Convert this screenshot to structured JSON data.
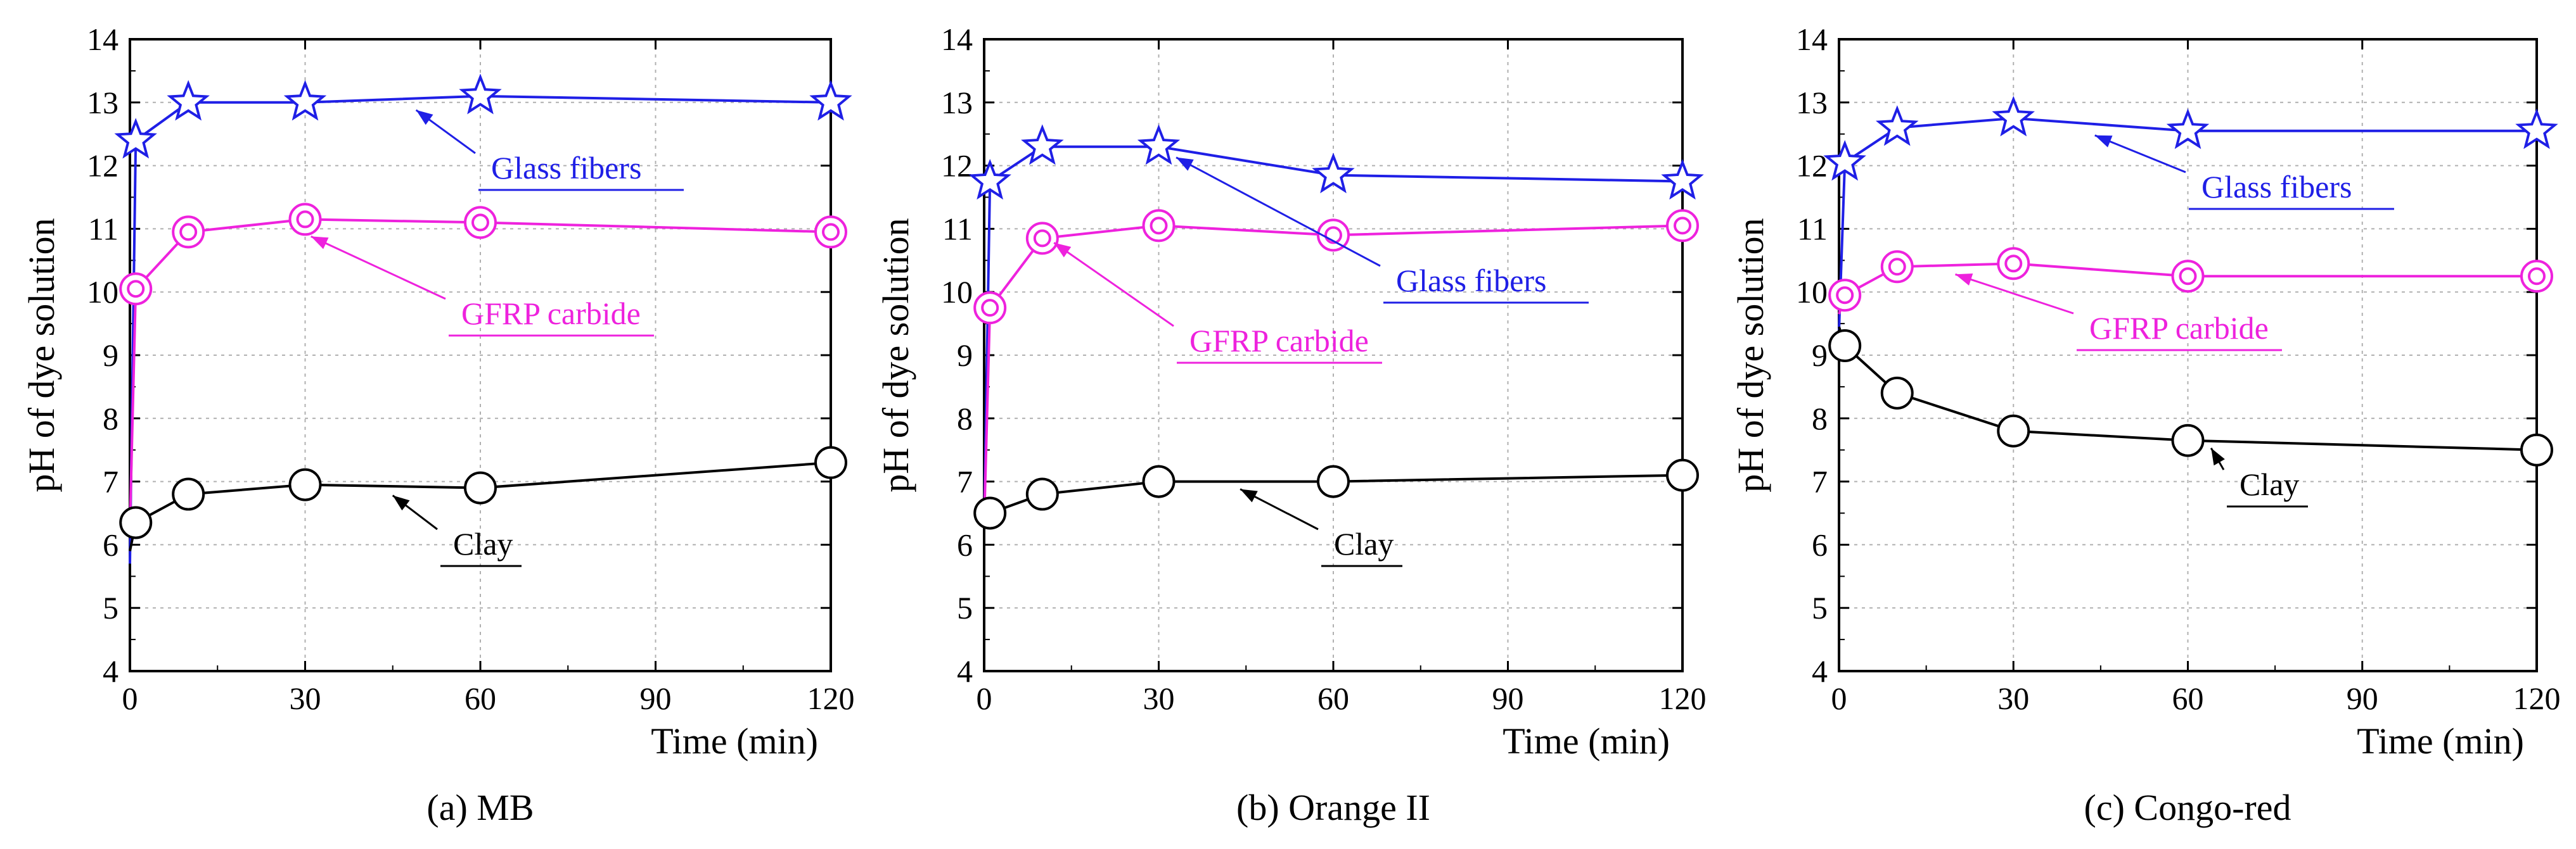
{
  "colors": {
    "glass": "#1f1fe6",
    "gfrp": "#ee22dd",
    "clay": "#000000",
    "grid": "#b0b0b0"
  },
  "chart_data": [
    {
      "type": "line",
      "caption": "(a) MB",
      "xlabel": "Time (min)",
      "ylabel": "pH of dye solution",
      "xlim": [
        0,
        120
      ],
      "ylim": [
        4,
        14
      ],
      "xticks": [
        0,
        30,
        60,
        90,
        120
      ],
      "yticks": [
        4,
        5,
        6,
        7,
        8,
        9,
        10,
        11,
        12,
        13,
        14
      ],
      "grid": true,
      "series": [
        {
          "name": "Glass fibers",
          "marker": "star",
          "x": [
            0,
            1,
            10,
            30,
            60,
            120
          ],
          "y": [
            5.7,
            12.4,
            13.0,
            13.0,
            13.1,
            13.0
          ]
        },
        {
          "name": "GFRP carbide",
          "marker": "double-circle",
          "x": [
            0,
            1,
            10,
            30,
            60,
            120
          ],
          "y": [
            6.3,
            10.05,
            10.95,
            11.15,
            11.1,
            10.95
          ]
        },
        {
          "name": "Clay",
          "marker": "circle",
          "x": [
            0,
            1,
            10,
            30,
            60,
            120
          ],
          "y": [
            5.9,
            6.35,
            6.8,
            6.95,
            6.9,
            7.3
          ]
        }
      ],
      "annotations": [
        {
          "text": "Glass fibers",
          "series": "Glass fibers",
          "x": 49,
          "y": 13.0
        },
        {
          "text": "GFRP carbide",
          "series": "GFRP carbide",
          "x": 31,
          "y": 11.0
        },
        {
          "text": "Clay",
          "series": "Clay",
          "x": 45,
          "y": 6.9
        }
      ]
    },
    {
      "type": "line",
      "caption": "(b) Orange II",
      "xlabel": "Time (min)",
      "ylabel": "pH of dye solution",
      "xlim": [
        0,
        120
      ],
      "ylim": [
        4,
        14
      ],
      "xticks": [
        0,
        30,
        60,
        90,
        120
      ],
      "yticks": [
        4,
        5,
        6,
        7,
        8,
        9,
        10,
        11,
        12,
        13,
        14
      ],
      "grid": true,
      "series": [
        {
          "name": "Glass fibers",
          "marker": "star",
          "x": [
            0,
            1,
            10,
            30,
            60,
            120
          ],
          "y": [
            6.3,
            11.75,
            12.3,
            12.3,
            11.85,
            11.75
          ]
        },
        {
          "name": "GFRP carbide",
          "marker": "double-circle",
          "x": [
            0,
            1,
            10,
            30,
            60,
            120
          ],
          "y": [
            6.35,
            9.75,
            10.85,
            11.05,
            10.9,
            11.05
          ]
        },
        {
          "name": "Clay",
          "marker": "circle",
          "x": [
            0,
            1,
            10,
            30,
            60,
            120
          ],
          "y": [
            6.45,
            6.5,
            6.8,
            7.0,
            7.0,
            7.1
          ]
        }
      ],
      "annotations": [
        {
          "text": "Glass fibers",
          "series": "Glass fibers",
          "x": 33,
          "y": 12.25
        },
        {
          "text": "GFRP carbide",
          "series": "GFRP carbide",
          "x": 12,
          "y": 10.9
        },
        {
          "text": "Clay",
          "series": "Clay",
          "x": 44,
          "y": 7.0
        }
      ]
    },
    {
      "type": "line",
      "caption": "(c) Congo-red",
      "xlabel": "Time (min)",
      "ylabel": "pH of dye solution",
      "xlim": [
        0,
        120
      ],
      "ylim": [
        4,
        14
      ],
      "xticks": [
        0,
        30,
        60,
        90,
        120
      ],
      "yticks": [
        4,
        5,
        6,
        7,
        8,
        9,
        10,
        11,
        12,
        13,
        14
      ],
      "grid": true,
      "series": [
        {
          "name": "Glass fibers",
          "marker": "star",
          "x": [
            0,
            1,
            10,
            30,
            60,
            120
          ],
          "y": [
            9.4,
            12.05,
            12.6,
            12.75,
            12.55,
            12.55
          ]
        },
        {
          "name": "GFRP carbide",
          "marker": "double-circle",
          "x": [
            0,
            1,
            10,
            30,
            60,
            120
          ],
          "y": [
            9.65,
            9.95,
            10.4,
            10.45,
            10.25,
            10.25
          ]
        },
        {
          "name": "Clay",
          "marker": "circle",
          "x": [
            0,
            1,
            10,
            30,
            60,
            120
          ],
          "y": [
            9.45,
            9.15,
            8.4,
            7.8,
            7.65,
            7.5
          ]
        }
      ],
      "annotations": [
        {
          "text": "Glass fibers",
          "series": "Glass fibers",
          "x": 44,
          "y": 12.6
        },
        {
          "text": "GFRP carbide",
          "series": "GFRP carbide",
          "x": 20,
          "y": 10.4
        },
        {
          "text": "Clay",
          "series": "Clay",
          "x": 64,
          "y": 7.65
        }
      ]
    }
  ]
}
